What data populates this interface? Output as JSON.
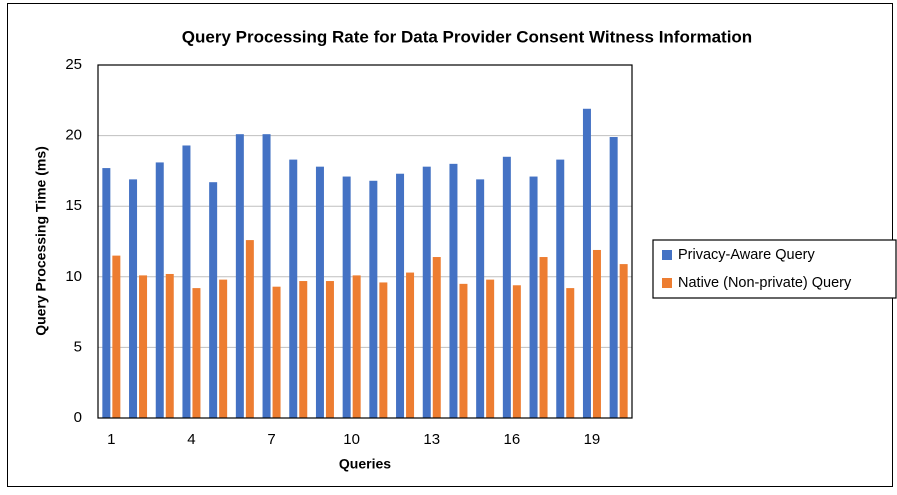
{
  "chart_data": {
    "type": "bar",
    "title": "Query Processing Rate for Data Provider Consent Witness Information",
    "xlabel": "Queries",
    "ylabel": "Query Processing Time (ms)",
    "categories": [
      "1",
      null,
      null,
      "4",
      null,
      null,
      "7",
      null,
      null,
      "10",
      null,
      null,
      "13",
      null,
      null,
      "16",
      null,
      null,
      "19",
      null
    ],
    "series": [
      {
        "name": "Privacy-Aware Query",
        "color": "#4472c4",
        "values": [
          17.7,
          16.9,
          18.1,
          19.3,
          16.7,
          20.1,
          20.1,
          18.3,
          17.8,
          17.1,
          16.8,
          17.3,
          17.8,
          18.0,
          16.9,
          18.5,
          17.1,
          18.3,
          21.9,
          19.9
        ]
      },
      {
        "name": "Native (Non-private) Query",
        "color": "#ed7d31",
        "values": [
          11.5,
          10.1,
          10.2,
          9.2,
          9.8,
          12.6,
          9.3,
          9.7,
          9.7,
          10.1,
          9.6,
          10.3,
          11.4,
          9.5,
          9.8,
          9.4,
          11.4,
          9.2,
          11.9,
          10.9
        ]
      }
    ],
    "ylim": [
      0,
      25
    ],
    "yticks": [
      0,
      5,
      10,
      15,
      20,
      25
    ],
    "grid": true,
    "legend": "right"
  }
}
